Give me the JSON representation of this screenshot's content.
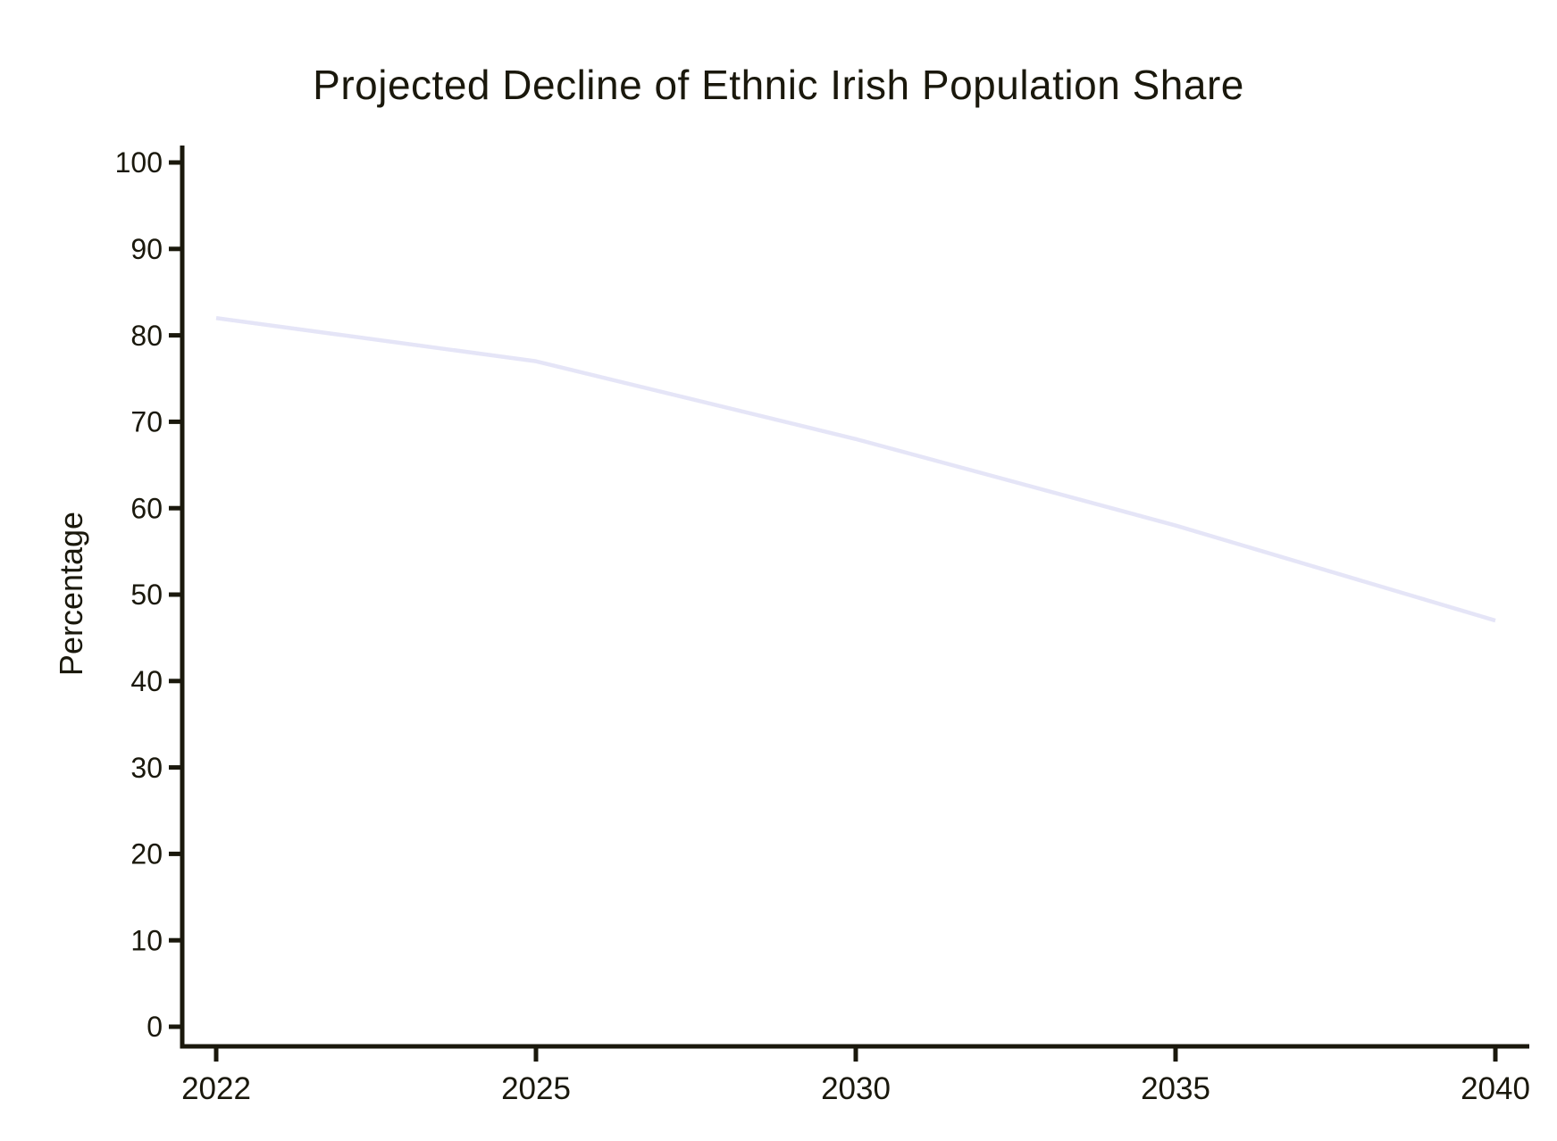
{
  "chart_data": {
    "type": "line",
    "title": "Projected Decline of Ethnic Irish Population Share",
    "xlabel": "",
    "ylabel": "Percentage",
    "categories": [
      "2022",
      "2025",
      "2030",
      "2035",
      "2040"
    ],
    "series": [
      {
        "values": [
          82,
          77,
          68,
          58,
          47
        ],
        "color": "#e5e5f7"
      }
    ],
    "ylim": [
      0,
      100
    ],
    "yticks": [
      0,
      10,
      20,
      30,
      40,
      50,
      60,
      70,
      80,
      90,
      100
    ],
    "grid": false,
    "legend": "none",
    "style": "xkcd-like",
    "axis_color": "#1a180c",
    "background": "#ffffff"
  }
}
